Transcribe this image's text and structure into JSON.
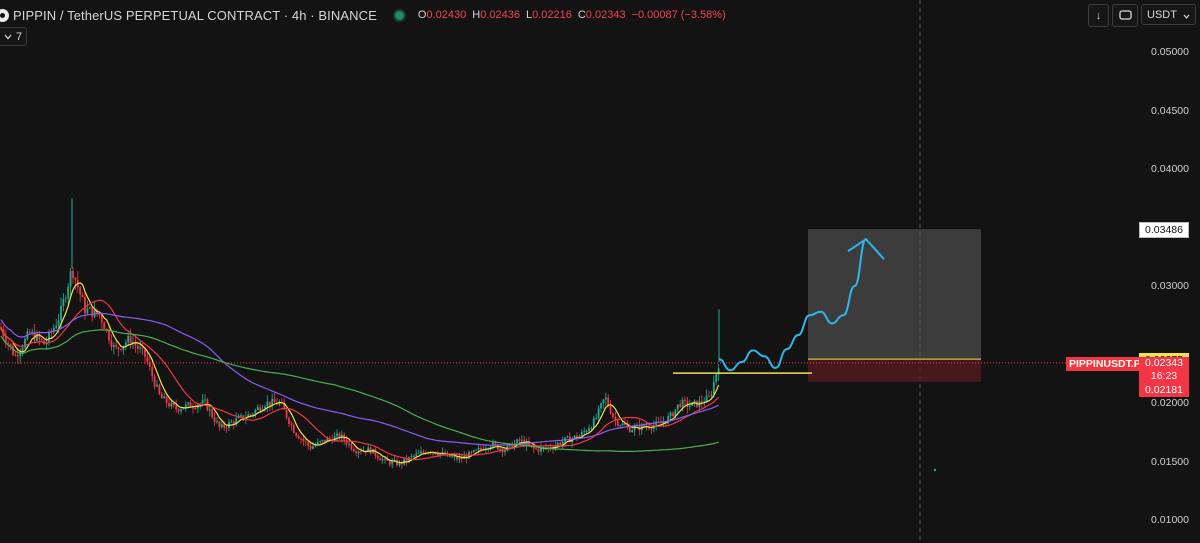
{
  "header": {
    "title": "PIPPIN / TetherUS PERPETUAL CONTRACT · 4h · BINANCE",
    "ohlc": [
      {
        "k": "O",
        "v": "0.02430"
      },
      {
        "k": "H",
        "v": "0.02436"
      },
      {
        "k": "L",
        "v": "0.02216"
      },
      {
        "k": "C",
        "v": "0.02343"
      },
      {
        "k": "",
        "v": "−0.00087 (−3.58%)"
      }
    ],
    "indicators_count": "7",
    "currency": "USDT",
    "download_icon": "↓"
  },
  "colors": {
    "background": "#131313",
    "up": "#22ab94",
    "down": "#f23645",
    "ma_fast": "#f3e04a",
    "ma_mid": "#f23645",
    "ma_slow": "#8a5cf5",
    "ma_long": "#4caf50",
    "projection": "#2fb6e8",
    "entry_line": "#f3e04a"
  },
  "chart_data": {
    "type": "candlestick",
    "symbol_label": "PIPPINUSDT.P",
    "timeframe": "4h",
    "y_axis": {
      "ticks": [
        "0.05000",
        "0.04500",
        "0.04000",
        "0.03000",
        "0.02000",
        "0.01500",
        "0.01000"
      ],
      "ylim": [
        0.01,
        0.05
      ]
    },
    "price_labels": {
      "target": "0.03486",
      "entry": "0.02375",
      "last": "0.02343",
      "countdown": "16:23",
      "stop": "0.02181"
    },
    "position": {
      "target": 0.03486,
      "entry": 0.02375,
      "stop": 0.02181
    },
    "projection_path_prices": [
      0.02375,
      0.0228,
      0.0235,
      0.0245,
      0.024,
      0.023,
      0.0246,
      0.0258,
      0.0275,
      0.0278,
      0.0268,
      0.0275,
      0.03,
      0.034,
      0.0352,
      0.0345
    ],
    "candle_anchors": [
      [
        0,
        0.0265
      ],
      [
        15,
        0.024
      ],
      [
        30,
        0.026
      ],
      [
        45,
        0.025
      ],
      [
        60,
        0.0275
      ],
      [
        72,
        0.0315
      ],
      [
        85,
        0.028
      ],
      [
        100,
        0.0275
      ],
      [
        115,
        0.0245
      ],
      [
        130,
        0.0255
      ],
      [
        145,
        0.024
      ],
      [
        160,
        0.0205
      ],
      [
        175,
        0.0195
      ],
      [
        190,
        0.0198
      ],
      [
        205,
        0.02
      ],
      [
        220,
        0.0178
      ],
      [
        235,
        0.0185
      ],
      [
        250,
        0.019
      ],
      [
        265,
        0.02
      ],
      [
        280,
        0.02
      ],
      [
        295,
        0.0175
      ],
      [
        310,
        0.0162
      ],
      [
        325,
        0.0168
      ],
      [
        340,
        0.0172
      ],
      [
        355,
        0.016
      ],
      [
        370,
        0.016
      ],
      [
        385,
        0.015
      ],
      [
        400,
        0.0148
      ],
      [
        415,
        0.0155
      ],
      [
        430,
        0.016
      ],
      [
        445,
        0.0155
      ],
      [
        460,
        0.0152
      ],
      [
        475,
        0.0158
      ],
      [
        490,
        0.0165
      ],
      [
        505,
        0.016
      ],
      [
        520,
        0.0168
      ],
      [
        535,
        0.016
      ],
      [
        550,
        0.0162
      ],
      [
        565,
        0.0168
      ],
      [
        580,
        0.0172
      ],
      [
        595,
        0.0185
      ],
      [
        605,
        0.0205
      ],
      [
        615,
        0.0185
      ],
      [
        630,
        0.0178
      ],
      [
        645,
        0.018
      ],
      [
        660,
        0.0182
      ],
      [
        670,
        0.0188
      ],
      [
        680,
        0.02
      ],
      [
        690,
        0.0198
      ],
      [
        700,
        0.02
      ],
      [
        710,
        0.0205
      ],
      [
        719,
        0.0235
      ]
    ]
  }
}
